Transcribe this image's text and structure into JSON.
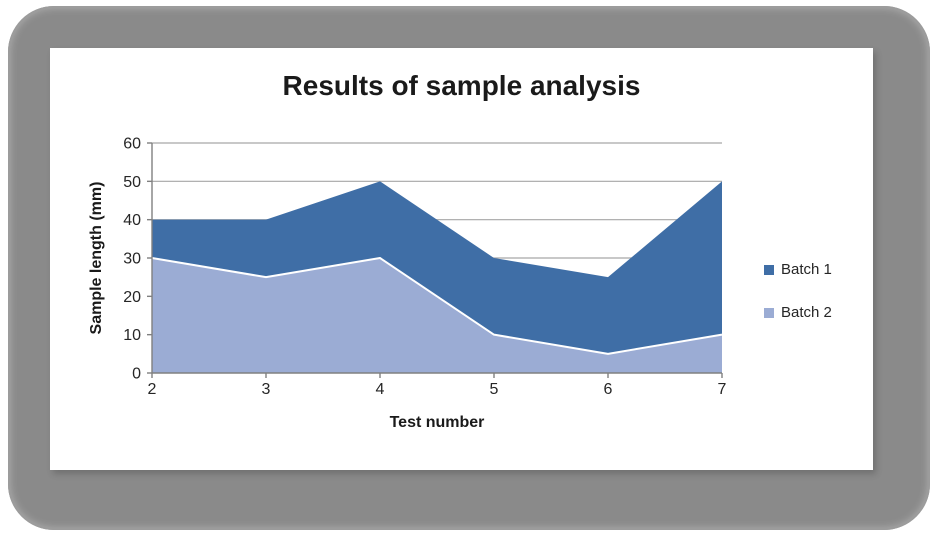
{
  "style": {
    "frame_gray": "#8A8A8A",
    "panel_bg": "#FFFFFF",
    "grid_color": "#A6A6A6",
    "axis_color": "#808080",
    "text_color": "#262626"
  },
  "chart_data": {
    "type": "area",
    "title": "Results of sample analysis",
    "xlabel": "Test number",
    "ylabel": "Sample length (mm)",
    "x": [
      2,
      3,
      4,
      5,
      6,
      7
    ],
    "series": [
      {
        "name": "Batch 1",
        "color": "#3F6EA6",
        "values": [
          40,
          40,
          50,
          30,
          25,
          50
        ]
      },
      {
        "name": "Batch 2",
        "color": "#9BACD4",
        "values": [
          30,
          25,
          30,
          10,
          5,
          10
        ],
        "top_edge_stroke": "#FFFFFF"
      }
    ],
    "ylim": [
      0,
      60
    ],
    "yticks": [
      0,
      10,
      20,
      30,
      40,
      50,
      60
    ],
    "grid": true,
    "legend_position": "right",
    "stacked": false,
    "legend": [
      {
        "label": "Batch 1"
      },
      {
        "label": "Batch 2"
      }
    ]
  }
}
